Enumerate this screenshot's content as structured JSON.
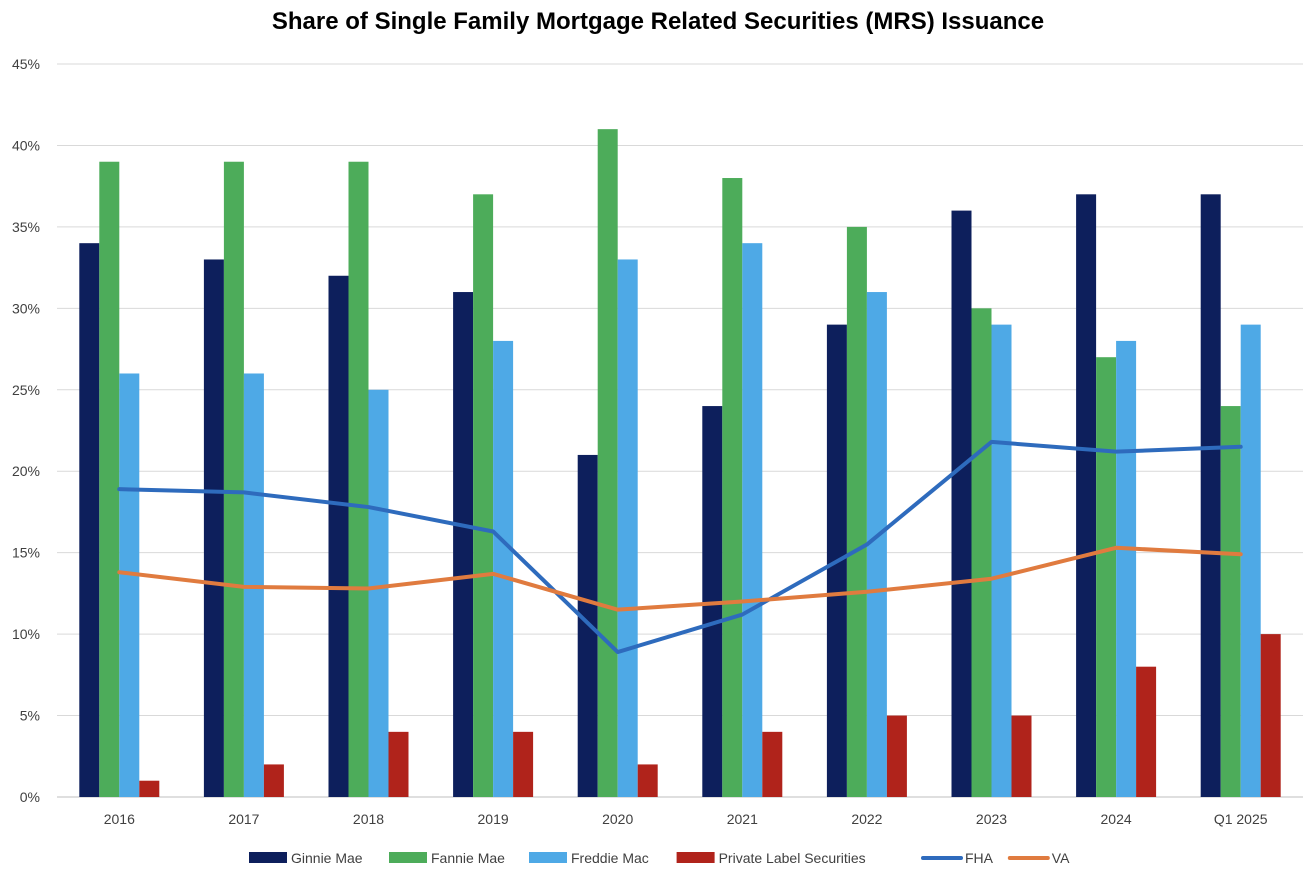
{
  "chart_data": {
    "type": "bar",
    "title": "Share of Single Family Mortgage Related Securities (MRS) Issuance",
    "xlabel": "",
    "ylabel": "",
    "ylim": [
      0,
      45
    ],
    "yticks": [
      "0%",
      "5%",
      "10%",
      "15%",
      "20%",
      "25%",
      "30%",
      "35%",
      "40%",
      "45%"
    ],
    "grid": true,
    "legend_position": "bottom",
    "categories": [
      "2016",
      "2017",
      "2018",
      "2019",
      "2020",
      "2021",
      "2022",
      "2023",
      "2024",
      "Q1 2025"
    ],
    "series": [
      {
        "name": "Ginnie Mae",
        "type": "bar",
        "color": "#0d1f5c",
        "values": [
          34,
          33,
          32,
          31,
          21,
          24,
          29,
          36,
          37,
          37
        ]
      },
      {
        "name": "Fannie Mae",
        "type": "bar",
        "color": "#4dac5a",
        "values": [
          39,
          39,
          39,
          37,
          41,
          38,
          35,
          30,
          27,
          24
        ]
      },
      {
        "name": "Freddie Mac",
        "type": "bar",
        "color": "#4ea9e6",
        "values": [
          26,
          26,
          25,
          28,
          33,
          34,
          31,
          29,
          28,
          29
        ]
      },
      {
        "name": "Private Label Securities",
        "type": "bar",
        "color": "#b0231b",
        "values": [
          1,
          2,
          4,
          4,
          2,
          4,
          5,
          5,
          8,
          10
        ]
      },
      {
        "name": "FHA",
        "type": "line",
        "color": "#2e6bbd",
        "values": [
          18.9,
          18.7,
          17.8,
          16.3,
          8.9,
          11.2,
          15.5,
          21.8,
          21.2,
          21.5
        ]
      },
      {
        "name": "VA",
        "type": "line",
        "color": "#e07b3f",
        "values": [
          13.8,
          12.9,
          12.8,
          13.7,
          11.5,
          12.0,
          12.6,
          13.4,
          15.3,
          14.9
        ]
      }
    ]
  }
}
